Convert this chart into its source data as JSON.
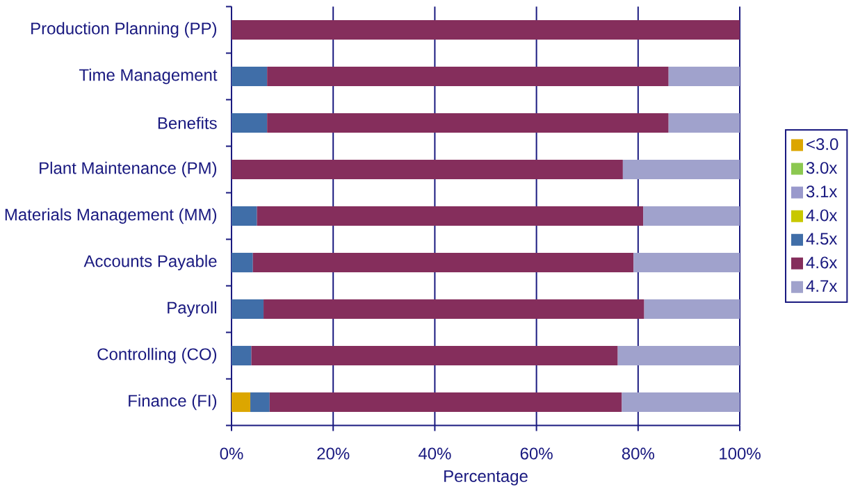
{
  "chart_data": {
    "type": "bar",
    "orientation": "horizontal",
    "stacked": true,
    "categories": [
      "Production Planning (PP)",
      "Time Management",
      "Benefits",
      "Plant Maintenance (PM)",
      "Materials Management (MM)",
      "Accounts Payable",
      "Payroll",
      "Controlling (CO)",
      "Finance (FI)"
    ],
    "series": [
      {
        "name": "<3.0",
        "color": "#dca600",
        "values": [
          0,
          0,
          0,
          0,
          0,
          0,
          0,
          0,
          3.7
        ]
      },
      {
        "name": "3.0x",
        "color": "#8cc850",
        "values": [
          0,
          0,
          0,
          0,
          0,
          0,
          0,
          0,
          0
        ]
      },
      {
        "name": "3.1x",
        "color": "#9999cc",
        "values": [
          0,
          0,
          0,
          0,
          0,
          0,
          0,
          0,
          0
        ]
      },
      {
        "name": "4.0x",
        "color": "#c8c800",
        "values": [
          0,
          0,
          0,
          0,
          0,
          0,
          0,
          0,
          0
        ]
      },
      {
        "name": "4.5x",
        "color": "#406ea8",
        "values": [
          0,
          7,
          7,
          0,
          5,
          4.2,
          6.3,
          3.9,
          3.8
        ]
      },
      {
        "name": "4.6x",
        "color": "#852e5c",
        "values": [
          100,
          79,
          79,
          77,
          76,
          74.9,
          74.9,
          72.1,
          69.3
        ]
      },
      {
        "name": "4.7x",
        "color": "#a0a2cc",
        "values": [
          0,
          14,
          14,
          23,
          19,
          20.9,
          18.8,
          24,
          23.2
        ]
      }
    ],
    "xlabel": "Percentage",
    "xlim": [
      0,
      100
    ],
    "xticks": [
      {
        "value": 0,
        "label": "0%"
      },
      {
        "value": 20,
        "label": "20%"
      },
      {
        "value": 40,
        "label": "40%"
      },
      {
        "value": 60,
        "label": "60%"
      },
      {
        "value": 80,
        "label": "80%"
      },
      {
        "value": 100,
        "label": "100%"
      }
    ],
    "grid": "x",
    "legend": "right"
  }
}
